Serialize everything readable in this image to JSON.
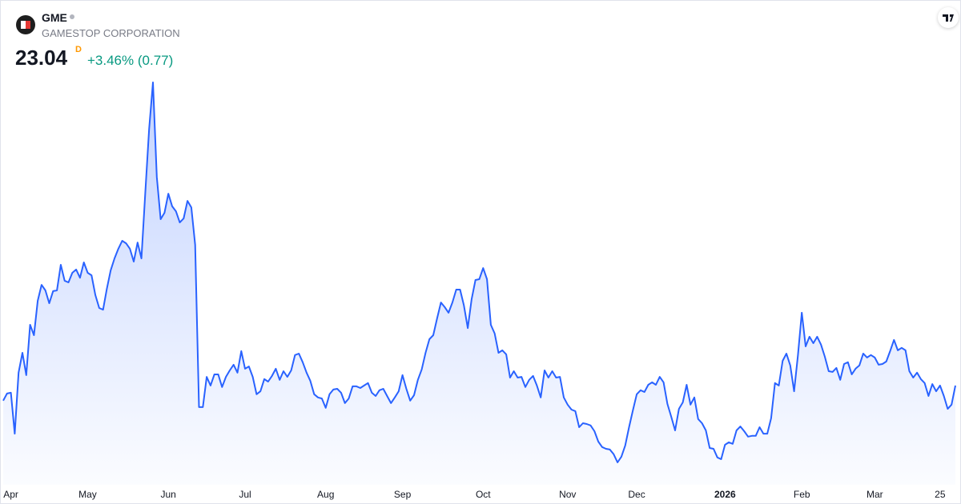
{
  "header": {
    "symbol": "GME",
    "name": "GAMESTOP CORPORATION",
    "price": "23.04",
    "interval": "D",
    "change": "+3.46% (0.77)"
  },
  "chart_data": {
    "type": "area",
    "color": "#2962ff",
    "values": [
      22.43,
      22.72,
      22.75,
      21.1,
      23.56,
      24.36,
      23.46,
      25.49,
      25.07,
      26.46,
      27.1,
      26.88,
      26.36,
      26.85,
      26.88,
      27.91,
      27.27,
      27.2,
      27.59,
      27.72,
      27.39,
      28.01,
      27.59,
      27.49,
      26.69,
      26.17,
      26.1,
      26.94,
      27.69,
      28.17,
      28.56,
      28.88,
      28.78,
      28.56,
      28.04,
      28.81,
      28.17,
      30.81,
      33.39,
      35.27,
      31.46,
      29.75,
      30.01,
      30.78,
      30.27,
      30.07,
      29.62,
      29.78,
      30.49,
      30.23,
      28.72,
      22.17,
      22.17,
      23.39,
      23.04,
      23.49,
      23.49,
      22.98,
      23.39,
      23.65,
      23.88,
      23.56,
      24.43,
      23.72,
      23.81,
      23.39,
      22.69,
      22.81,
      23.3,
      23.2,
      23.43,
      23.72,
      23.27,
      23.62,
      23.39,
      23.65,
      24.27,
      24.33,
      23.98,
      23.56,
      23.23,
      22.69,
      22.56,
      22.52,
      22.14,
      22.69,
      22.88,
      22.91,
      22.75,
      22.33,
      22.52,
      23.01,
      23.01,
      22.94,
      23.04,
      23.14,
      22.75,
      22.62,
      22.85,
      22.91,
      22.62,
      22.33,
      22.56,
      22.81,
      23.46,
      22.91,
      22.43,
      22.65,
      23.27,
      23.69,
      24.36,
      24.91,
      25.07,
      25.75,
      26.39,
      26.2,
      25.98,
      26.39,
      26.91,
      26.91,
      26.27,
      25.36,
      26.52,
      27.3,
      27.33,
      27.78,
      27.33,
      25.49,
      25.14,
      24.36,
      24.46,
      24.3,
      23.36,
      23.62,
      23.36,
      23.39,
      22.98,
      23.27,
      23.43,
      23.04,
      22.56,
      23.65,
      23.36,
      23.62,
      23.36,
      23.39,
      22.56,
      22.27,
      22.07,
      22.01,
      21.36,
      21.52,
      21.49,
      21.43,
      21.2,
      20.78,
      20.56,
      20.49,
      20.46,
      20.27,
      19.94,
      20.17,
      20.62,
      21.36,
      22.04,
      22.69,
      22.85,
      22.78,
      23.07,
      23.17,
      23.07,
      23.39,
      23.17,
      22.3,
      21.78,
      21.23,
      22.1,
      22.36,
      23.07,
      22.27,
      22.56,
      21.69,
      21.52,
      21.23,
      20.52,
      20.49,
      20.14,
      20.07,
      20.65,
      20.75,
      20.69,
      21.23,
      21.39,
      21.2,
      20.98,
      21.01,
      21.01,
      21.36,
      21.1,
      21.1,
      21.72,
      23.14,
      23.04,
      24.04,
      24.33,
      23.85,
      22.81,
      24.27,
      25.98,
      24.62,
      25.01,
      24.75,
      25.01,
      24.69,
      24.2,
      23.62,
      23.59,
      23.75,
      23.27,
      23.91,
      23.98,
      23.49,
      23.72,
      23.85,
      24.33,
      24.17,
      24.27,
      24.17,
      23.88,
      23.91,
      24.01,
      24.43,
      24.88,
      24.46,
      24.56,
      24.46,
      23.62,
      23.36,
      23.56,
      23.3,
      23.14,
      22.62,
      23.1,
      22.81,
      23.04,
      22.62,
      22.1,
      22.27,
      23.04
    ],
    "xticks": [
      {
        "value": 2,
        "label": "Apr"
      },
      {
        "value": 22,
        "label": "May"
      },
      {
        "value": 43,
        "label": "Jun"
      },
      {
        "value": 63,
        "label": "Jul"
      },
      {
        "value": 84,
        "label": "Aug"
      },
      {
        "value": 104,
        "label": "Sep"
      },
      {
        "value": 125,
        "label": "Oct"
      },
      {
        "value": 147,
        "label": "Nov"
      },
      {
        "value": 165,
        "label": "Dec"
      },
      {
        "value": 188,
        "label": "2026"
      },
      {
        "value": 208,
        "label": "Feb"
      },
      {
        "value": 227,
        "label": "Mar"
      },
      {
        "value": 244,
        "label": "25"
      }
    ]
  }
}
